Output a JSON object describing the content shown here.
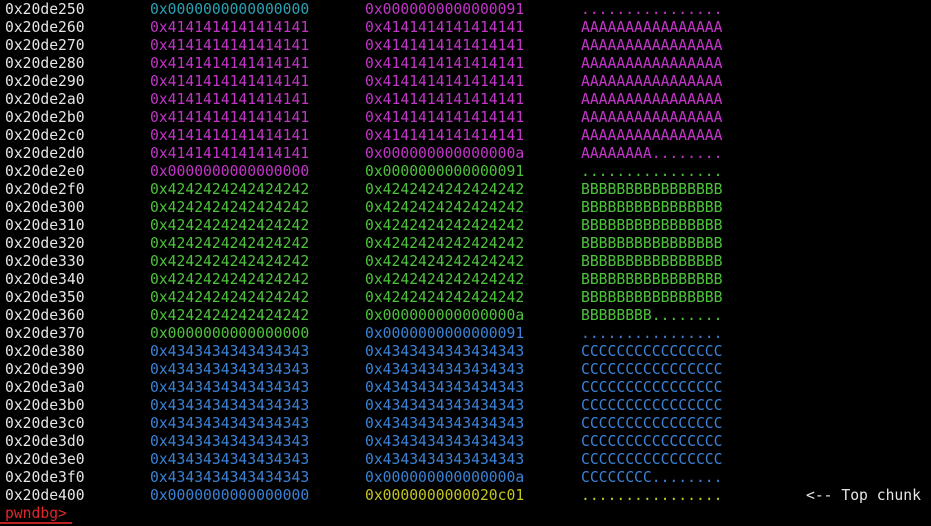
{
  "rows": [
    {
      "addr": "0x20de250",
      "q1": "0x0000000000000000",
      "q2": "0x0000000000000091",
      "ascii": "................",
      "colors": [
        "#2aa1b3",
        "#c235c8",
        "#c235c8"
      ]
    },
    {
      "addr": "0x20de260",
      "q1": "0x4141414141414141",
      "q2": "0x4141414141414141",
      "ascii": "AAAAAAAAAAAAAAAA",
      "colors": [
        "#c235c8",
        "#c235c8",
        "#c235c8"
      ]
    },
    {
      "addr": "0x20de270",
      "q1": "0x4141414141414141",
      "q2": "0x4141414141414141",
      "ascii": "AAAAAAAAAAAAAAAA",
      "colors": [
        "#c235c8",
        "#c235c8",
        "#c235c8"
      ]
    },
    {
      "addr": "0x20de280",
      "q1": "0x4141414141414141",
      "q2": "0x4141414141414141",
      "ascii": "AAAAAAAAAAAAAAAA",
      "colors": [
        "#c235c8",
        "#c235c8",
        "#c235c8"
      ]
    },
    {
      "addr": "0x20de290",
      "q1": "0x4141414141414141",
      "q2": "0x4141414141414141",
      "ascii": "AAAAAAAAAAAAAAAA",
      "colors": [
        "#c235c8",
        "#c235c8",
        "#c235c8"
      ]
    },
    {
      "addr": "0x20de2a0",
      "q1": "0x4141414141414141",
      "q2": "0x4141414141414141",
      "ascii": "AAAAAAAAAAAAAAAA",
      "colors": [
        "#c235c8",
        "#c235c8",
        "#c235c8"
      ]
    },
    {
      "addr": "0x20de2b0",
      "q1": "0x4141414141414141",
      "q2": "0x4141414141414141",
      "ascii": "AAAAAAAAAAAAAAAA",
      "colors": [
        "#c235c8",
        "#c235c8",
        "#c235c8"
      ]
    },
    {
      "addr": "0x20de2c0",
      "q1": "0x4141414141414141",
      "q2": "0x4141414141414141",
      "ascii": "AAAAAAAAAAAAAAAA",
      "colors": [
        "#c235c8",
        "#c235c8",
        "#c235c8"
      ]
    },
    {
      "addr": "0x20de2d0",
      "q1": "0x4141414141414141",
      "q2": "0x000000000000000a",
      "ascii": "AAAAAAAA........",
      "colors": [
        "#c235c8",
        "#c235c8",
        "#c235c8"
      ]
    },
    {
      "addr": "0x20de2e0",
      "q1": "0x0000000000000000",
      "q2": "0x0000000000000091",
      "ascii": "................",
      "colors": [
        "#c235c8",
        "#4ec23c",
        "#4ec23c"
      ]
    },
    {
      "addr": "0x20de2f0",
      "q1": "0x4242424242424242",
      "q2": "0x4242424242424242",
      "ascii": "BBBBBBBBBBBBBBBB",
      "colors": [
        "#4ec23c",
        "#4ec23c",
        "#4ec23c"
      ]
    },
    {
      "addr": "0x20de300",
      "q1": "0x4242424242424242",
      "q2": "0x4242424242424242",
      "ascii": "BBBBBBBBBBBBBBBB",
      "colors": [
        "#4ec23c",
        "#4ec23c",
        "#4ec23c"
      ]
    },
    {
      "addr": "0x20de310",
      "q1": "0x4242424242424242",
      "q2": "0x4242424242424242",
      "ascii": "BBBBBBBBBBBBBBBB",
      "colors": [
        "#4ec23c",
        "#4ec23c",
        "#4ec23c"
      ]
    },
    {
      "addr": "0x20de320",
      "q1": "0x4242424242424242",
      "q2": "0x4242424242424242",
      "ascii": "BBBBBBBBBBBBBBBB",
      "colors": [
        "#4ec23c",
        "#4ec23c",
        "#4ec23c"
      ]
    },
    {
      "addr": "0x20de330",
      "q1": "0x4242424242424242",
      "q2": "0x4242424242424242",
      "ascii": "BBBBBBBBBBBBBBBB",
      "colors": [
        "#4ec23c",
        "#4ec23c",
        "#4ec23c"
      ]
    },
    {
      "addr": "0x20de340",
      "q1": "0x4242424242424242",
      "q2": "0x4242424242424242",
      "ascii": "BBBBBBBBBBBBBBBB",
      "colors": [
        "#4ec23c",
        "#4ec23c",
        "#4ec23c"
      ]
    },
    {
      "addr": "0x20de350",
      "q1": "0x4242424242424242",
      "q2": "0x4242424242424242",
      "ascii": "BBBBBBBBBBBBBBBB",
      "colors": [
        "#4ec23c",
        "#4ec23c",
        "#4ec23c"
      ]
    },
    {
      "addr": "0x20de360",
      "q1": "0x4242424242424242",
      "q2": "0x000000000000000a",
      "ascii": "BBBBBBBB........",
      "colors": [
        "#4ec23c",
        "#4ec23c",
        "#4ec23c"
      ]
    },
    {
      "addr": "0x20de370",
      "q1": "0x0000000000000000",
      "q2": "0x0000000000000091",
      "ascii": "................",
      "colors": [
        "#4ec23c",
        "#3b82d6",
        "#3b82d6"
      ]
    },
    {
      "addr": "0x20de380",
      "q1": "0x4343434343434343",
      "q2": "0x4343434343434343",
      "ascii": "CCCCCCCCCCCCCCCC",
      "colors": [
        "#3b82d6",
        "#3b82d6",
        "#3b82d6"
      ]
    },
    {
      "addr": "0x20de390",
      "q1": "0x4343434343434343",
      "q2": "0x4343434343434343",
      "ascii": "CCCCCCCCCCCCCCCC",
      "colors": [
        "#3b82d6",
        "#3b82d6",
        "#3b82d6"
      ]
    },
    {
      "addr": "0x20de3a0",
      "q1": "0x4343434343434343",
      "q2": "0x4343434343434343",
      "ascii": "CCCCCCCCCCCCCCCC",
      "colors": [
        "#3b82d6",
        "#3b82d6",
        "#3b82d6"
      ]
    },
    {
      "addr": "0x20de3b0",
      "q1": "0x4343434343434343",
      "q2": "0x4343434343434343",
      "ascii": "CCCCCCCCCCCCCCCC",
      "colors": [
        "#3b82d6",
        "#3b82d6",
        "#3b82d6"
      ]
    },
    {
      "addr": "0x20de3c0",
      "q1": "0x4343434343434343",
      "q2": "0x4343434343434343",
      "ascii": "CCCCCCCCCCCCCCCC",
      "colors": [
        "#3b82d6",
        "#3b82d6",
        "#3b82d6"
      ]
    },
    {
      "addr": "0x20de3d0",
      "q1": "0x4343434343434343",
      "q2": "0x4343434343434343",
      "ascii": "CCCCCCCCCCCCCCCC",
      "colors": [
        "#3b82d6",
        "#3b82d6",
        "#3b82d6"
      ]
    },
    {
      "addr": "0x20de3e0",
      "q1": "0x4343434343434343",
      "q2": "0x4343434343434343",
      "ascii": "CCCCCCCCCCCCCCCC",
      "colors": [
        "#3b82d6",
        "#3b82d6",
        "#3b82d6"
      ]
    },
    {
      "addr": "0x20de3f0",
      "q1": "0x4343434343434343",
      "q2": "0x000000000000000a",
      "ascii": "CCCCCCCC........",
      "colors": [
        "#3b82d6",
        "#3b82d6",
        "#3b82d6"
      ]
    },
    {
      "addr": "0x20de400",
      "q1": "0x0000000000000000",
      "q2": "0x0000000000020c01",
      "ascii": "................",
      "colors": [
        "#3b82d6",
        "#c4c41e",
        "#c4c41e"
      ],
      "note": "<-- Top chunk"
    }
  ],
  "prompt": "pwndbg>"
}
